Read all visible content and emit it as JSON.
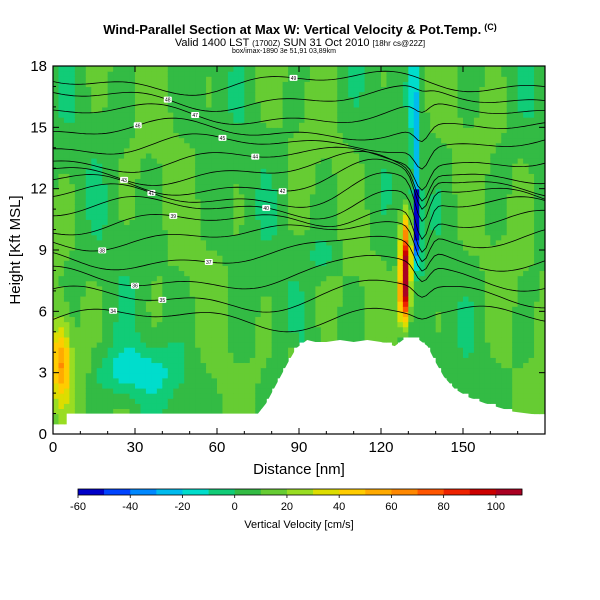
{
  "header": {
    "title": "Wind-Parallel Section at Max W: Vertical Velocity & Pot.Temp.",
    "title_suffix": "(C)",
    "subtitle_a": "Valid 1400 LST",
    "subtitle_b": "(1700Z)",
    "subtitle_c": "SUN 31 Oct 2010",
    "subtitle_d": "[18hr cs@22Z]",
    "bbox_note": "box/imax-1890 3e 51,91 03,89km"
  },
  "chart_data": {
    "type": "heatmap",
    "title": "Wind-Parallel Section at Max W: Vertical Velocity & Pot.Temp.",
    "xlabel": "Distance [nm]",
    "ylabel": "Height [Kft MSL]",
    "xlim": [
      0,
      180
    ],
    "ylim": [
      0,
      18
    ],
    "xticks": [
      "0",
      "30",
      "60",
      "90",
      "120",
      "150"
    ],
    "yticks": [
      "0",
      "3",
      "6",
      "9",
      "12",
      "15",
      "18"
    ],
    "colorbar": {
      "label": "Vertical Velocity [cm/s]",
      "levels": [
        -60,
        -50,
        -40,
        -30,
        -20,
        -10,
        0,
        10,
        20,
        30,
        40,
        50,
        60,
        70,
        80,
        90,
        100,
        110
      ],
      "tick_labels": [
        "-60",
        "-40",
        "-20",
        "0",
        "20",
        "40",
        "60",
        "80",
        "100"
      ],
      "colors": [
        "#0000c8",
        "#0044ff",
        "#0088ff",
        "#00bbee",
        "#00ddcc",
        "#11cc77",
        "#33bb44",
        "#66cc33",
        "#99dd22",
        "#dddd00",
        "#ffcc00",
        "#ffaa00",
        "#ff8800",
        "#ff5500",
        "#ee2200",
        "#cc0000",
        "#aa0022"
      ]
    },
    "terrain": [
      [
        0,
        0.4
      ],
      [
        5,
        0.4
      ],
      [
        5,
        1
      ],
      [
        10,
        1
      ],
      [
        20,
        1
      ],
      [
        30,
        1
      ],
      [
        40,
        1
      ],
      [
        50,
        1
      ],
      [
        60,
        1
      ],
      [
        70,
        1
      ],
      [
        75,
        1
      ],
      [
        78,
        1.5
      ],
      [
        82,
        2.5
      ],
      [
        86,
        3.5
      ],
      [
        89,
        4.2
      ],
      [
        93,
        4.6
      ],
      [
        96,
        4.5
      ],
      [
        100,
        4.5
      ],
      [
        105,
        4.6
      ],
      [
        110,
        4.5
      ],
      [
        115,
        4.6
      ],
      [
        120,
        4.5
      ],
      [
        125,
        4.3
      ],
      [
        128,
        4.6
      ],
      [
        131,
        4.7
      ],
      [
        134,
        4.6
      ],
      [
        137,
        4.3
      ],
      [
        140,
        3.5
      ],
      [
        143,
        2.8
      ],
      [
        147,
        2.2
      ],
      [
        152,
        1.8
      ],
      [
        158,
        1.5
      ],
      [
        163,
        1.3
      ],
      [
        168,
        1.1
      ],
      [
        174,
        1.0
      ],
      [
        180,
        0.9
      ]
    ],
    "features": {
      "updraft": {
        "x": 128.5,
        "y_bottom": 4.7,
        "y_top": 11.5,
        "max": 100
      },
      "downdraft": {
        "x": 133,
        "y_bottom": 7.5,
        "y_top": 18,
        "min": -60
      },
      "surface_warm_spot": {
        "x": 3,
        "y": 3.5,
        "max": 50
      }
    },
    "isentropes": [
      {
        "label": "34",
        "base": 5.6
      },
      {
        "label": "35",
        "base": 6.6
      },
      {
        "label": "36",
        "base": 7.6
      },
      {
        "label": "37",
        "base": 8.6
      },
      {
        "label": "38",
        "base": 9.6
      },
      {
        "label": "39",
        "base": 10.3
      },
      {
        "label": "40",
        "base": 11.0
      },
      {
        "label": "41",
        "base": 11.6
      },
      {
        "label": "42",
        "base": 12.2
      },
      {
        "label": "43",
        "base": 12.8
      },
      {
        "label": "44",
        "base": 13.4
      },
      {
        "label": "45",
        "base": 14.1
      },
      {
        "label": "46",
        "base": 14.8
      },
      {
        "label": "47",
        "base": 15.6
      },
      {
        "label": "48",
        "base": 16.4
      },
      {
        "label": "49",
        "base": 17.2
      }
    ]
  }
}
